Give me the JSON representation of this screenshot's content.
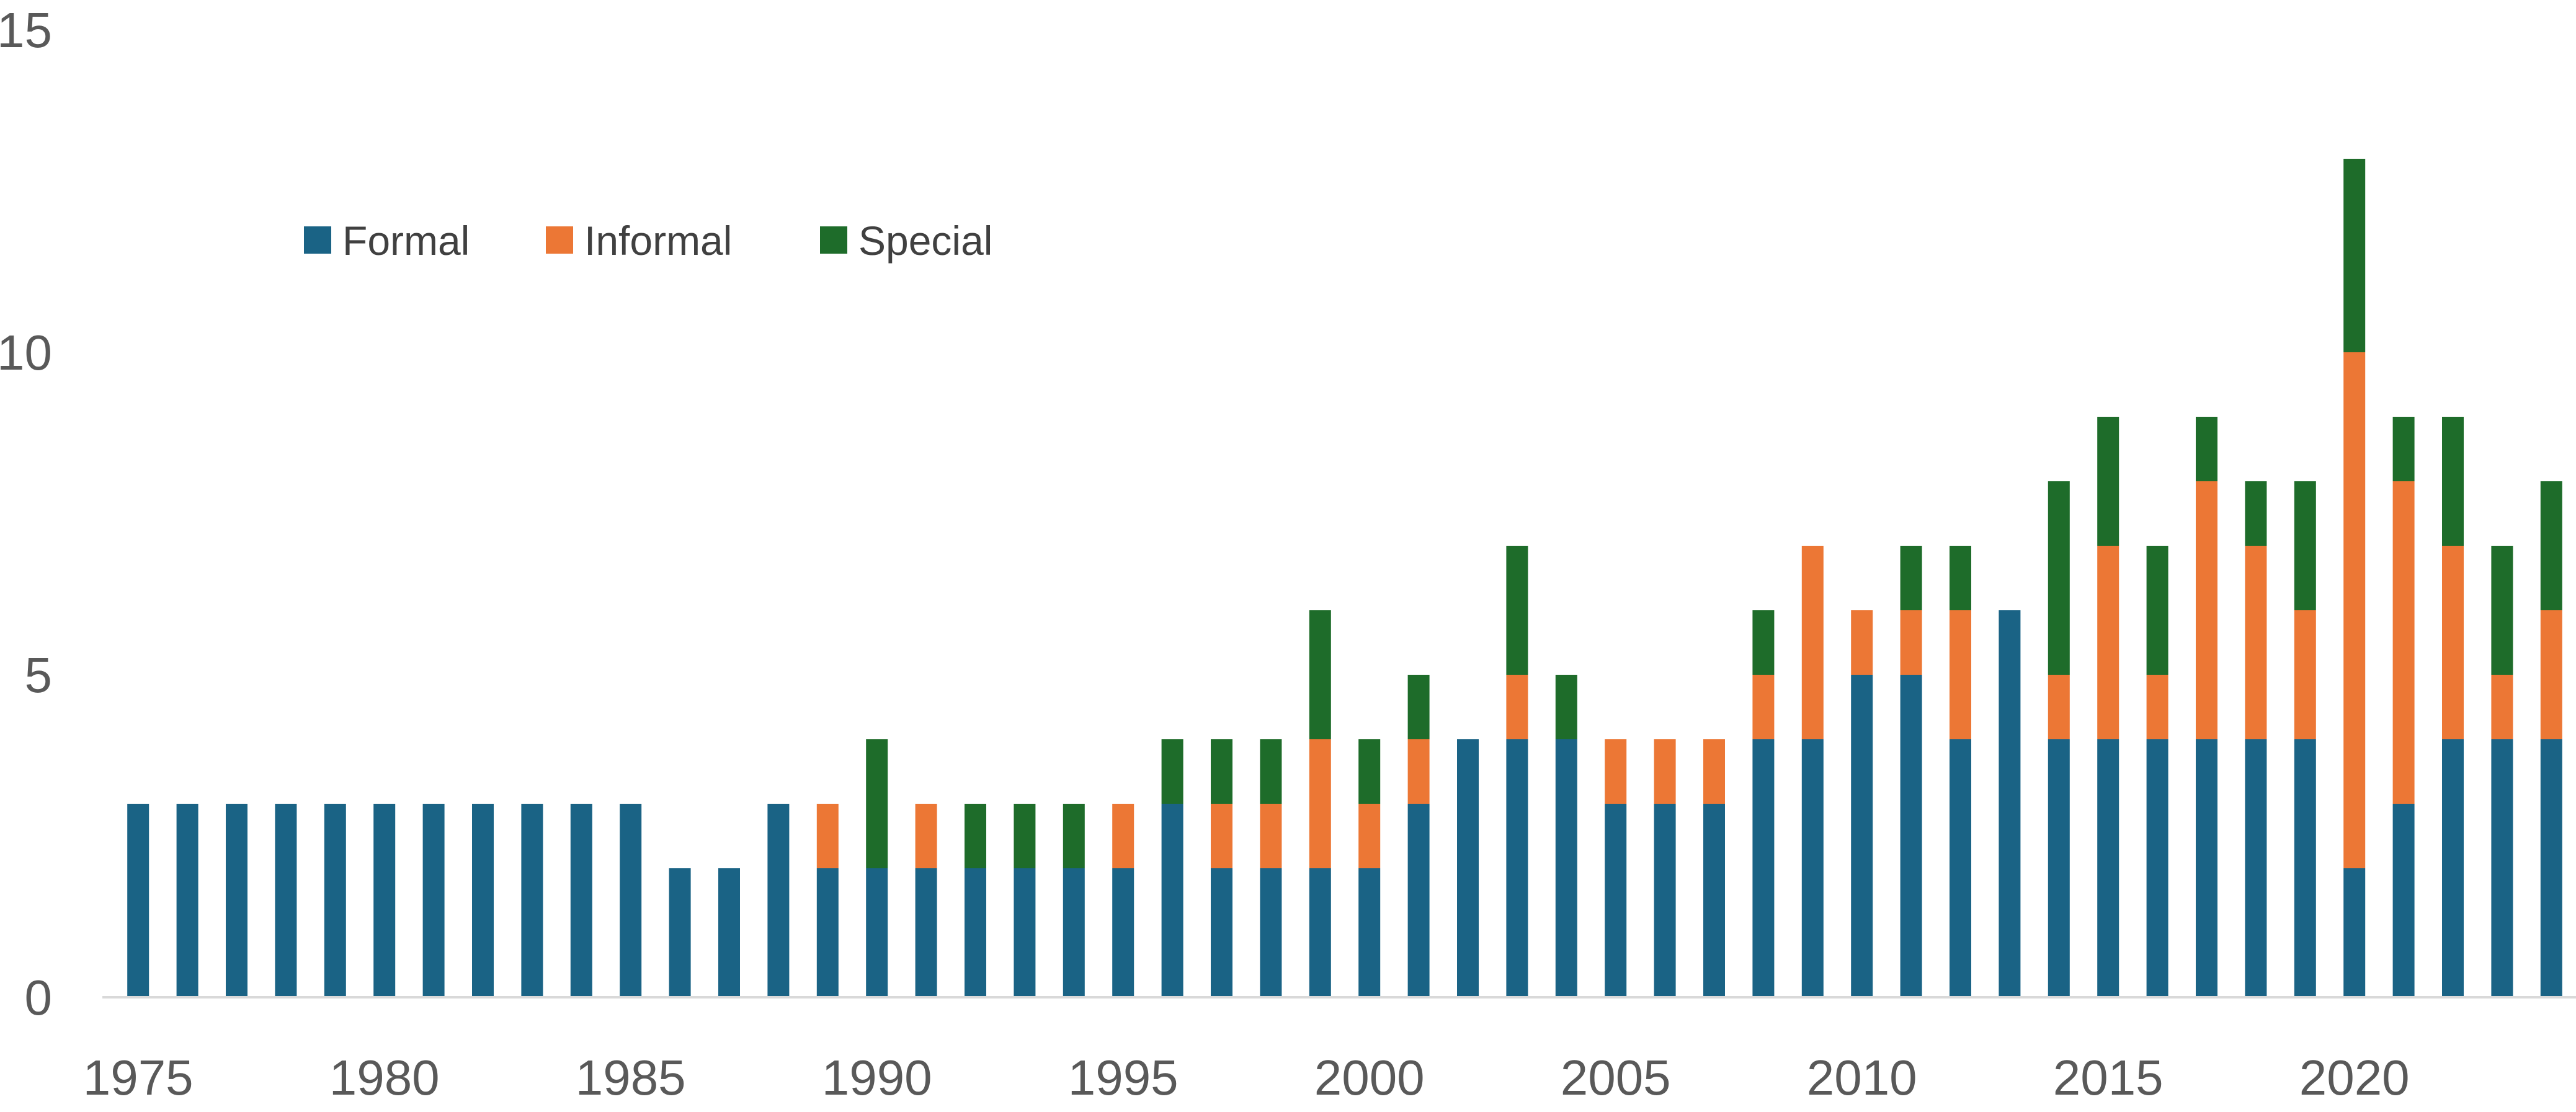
{
  "chart_data": {
    "type": "bar",
    "stacked": true,
    "categories": [
      1975,
      1976,
      1977,
      1978,
      1979,
      1980,
      1981,
      1982,
      1983,
      1984,
      1985,
      1986,
      1987,
      1988,
      1989,
      1990,
      1991,
      1992,
      1993,
      1994,
      1995,
      1996,
      1997,
      1998,
      1999,
      2000,
      2001,
      2002,
      2003,
      2004,
      2005,
      2006,
      2007,
      2008,
      2009,
      2010,
      2011,
      2012,
      2013,
      2014,
      2015,
      2016,
      2017,
      2018,
      2019,
      2020,
      2021,
      2022,
      2023,
      2024
    ],
    "series": [
      {
        "name": "Formal",
        "color": "#1a6385",
        "values": [
          3,
          3,
          3,
          3,
          3,
          3,
          3,
          3,
          3,
          3,
          3,
          2,
          2,
          3,
          2,
          2,
          2,
          2,
          2,
          2,
          2,
          3,
          2,
          2,
          2,
          2,
          3,
          4,
          4,
          4,
          3,
          3,
          3,
          4,
          4,
          5,
          5,
          4,
          6,
          4,
          4,
          4,
          4,
          4,
          4,
          2,
          3,
          4,
          4,
          4
        ]
      },
      {
        "name": "Informal",
        "color": "#ec7735",
        "values": [
          0,
          0,
          0,
          0,
          0,
          0,
          0,
          0,
          0,
          0,
          0,
          0,
          0,
          0,
          1,
          0,
          1,
          0,
          0,
          0,
          1,
          0,
          1,
          1,
          2,
          1,
          1,
          0,
          1,
          0,
          1,
          1,
          1,
          1,
          3,
          1,
          1,
          2,
          0,
          1,
          3,
          1,
          4,
          3,
          2,
          8,
          5,
          3,
          1,
          2
        ]
      },
      {
        "name": "Special",
        "color": "#1e6c2a",
        "values": [
          0,
          0,
          0,
          0,
          0,
          0,
          0,
          0,
          0,
          0,
          0,
          0,
          0,
          0,
          0,
          2,
          0,
          1,
          1,
          1,
          0,
          1,
          1,
          1,
          2,
          1,
          1,
          0,
          2,
          1,
          0,
          0,
          0,
          1,
          0,
          0,
          1,
          1,
          0,
          3,
          2,
          2,
          1,
          1,
          2,
          3,
          1,
          2,
          2,
          2
        ]
      }
    ],
    "ylim": [
      0,
      15
    ],
    "yticks": [
      "0",
      "5",
      "10",
      "15"
    ],
    "xtick_labels": [
      "1975",
      "1980",
      "1985",
      "1990",
      "1995",
      "2000",
      "2005",
      "2010",
      "2015",
      "2020"
    ],
    "title": "",
    "xlabel": "",
    "ylabel": "",
    "grid": false,
    "legend_position": "top-left"
  }
}
